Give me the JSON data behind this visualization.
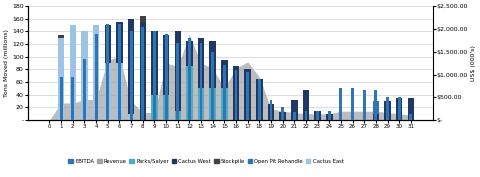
{
  "years": [
    0,
    1,
    2,
    3,
    4,
    5,
    6,
    7,
    8,
    9,
    10,
    11,
    12,
    13,
    14,
    15,
    16,
    17,
    18,
    19,
    20,
    21,
    22,
    23,
    24,
    25,
    26,
    27,
    28,
    29,
    30,
    31
  ],
  "cactus_east": [
    0,
    130,
    150,
    140,
    150,
    90,
    90,
    10,
    0,
    0,
    0,
    0,
    0,
    0,
    0,
    0,
    0,
    0,
    0,
    0,
    0,
    0,
    0,
    0,
    0,
    0,
    0,
    0,
    0,
    0,
    0,
    0
  ],
  "parks_salyer": [
    0,
    0,
    0,
    0,
    0,
    0,
    0,
    0,
    0,
    40,
    40,
    15,
    85,
    50,
    50,
    50,
    0,
    0,
    0,
    0,
    0,
    0,
    0,
    0,
    0,
    0,
    0,
    0,
    0,
    0,
    0,
    0
  ],
  "cactus_west_left": [
    0,
    0,
    0,
    0,
    0,
    60,
    65,
    150,
    155,
    100,
    95,
    125,
    40,
    80,
    75,
    45,
    85,
    80,
    65,
    25,
    12,
    32,
    47,
    14,
    10,
    0,
    0,
    0,
    10,
    30,
    35,
    35
  ],
  "open_pit": [
    0,
    0,
    0,
    0,
    0,
    0,
    0,
    0,
    0,
    0,
    0,
    0,
    0,
    0,
    0,
    0,
    0,
    0,
    0,
    0,
    0,
    0,
    0,
    0,
    0,
    0,
    0,
    0,
    20,
    0,
    0,
    0
  ],
  "stockpile": [
    0,
    4,
    0,
    0,
    0,
    0,
    0,
    0,
    10,
    0,
    0,
    0,
    0,
    0,
    0,
    0,
    0,
    0,
    0,
    0,
    0,
    0,
    0,
    0,
    0,
    0,
    0,
    0,
    0,
    0,
    0,
    0
  ],
  "revenue_area": [
    0,
    27,
    27,
    32,
    33,
    95,
    100,
    30,
    12,
    12,
    90,
    85,
    135,
    90,
    82,
    50,
    82,
    92,
    68,
    18,
    14,
    12,
    10,
    10,
    10,
    14,
    14,
    14,
    14,
    12,
    10,
    8
  ],
  "ebitda_right": [
    0,
    950,
    950,
    1350,
    1900,
    2100,
    2100,
    1950,
    2050,
    1950,
    1900,
    1700,
    1800,
    1700,
    1500,
    1200,
    1100,
    1050,
    900,
    450,
    280,
    170,
    200,
    200,
    200,
    700,
    700,
    650,
    650,
    500,
    500,
    130
  ],
  "color_ebitda": "#2E75B6",
  "color_revenue": "#A0A0A0",
  "color_parks": "#4BACC6",
  "color_cactus_west": "#1F3864",
  "color_stockpile": "#404040",
  "color_open_pit": "#2E75B6",
  "color_cactus_east": "#9DC3E6",
  "left_ylim": [
    0,
    180
  ],
  "right_ylim": [
    0,
    2500
  ],
  "left_yticks": [
    0,
    20,
    40,
    60,
    80,
    100,
    120,
    140,
    160,
    180
  ],
  "right_yticks": [
    0,
    500,
    1000,
    1500,
    2000,
    2500
  ],
  "right_yticklabels": [
    "$-",
    "$500.00",
    "$1,000.00",
    "$1,500.00",
    "$2,000.00",
    "$2,500.00"
  ],
  "left_ylabel": "Tons Moved (millions)",
  "right_ylabel": "US$ (000's)",
  "bg_color": "#FFFFFF"
}
